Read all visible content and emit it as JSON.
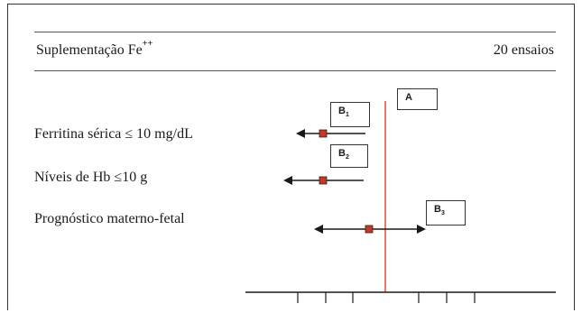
{
  "header": {
    "title": "Suplementação Fe",
    "title_superscript": "++",
    "count": "20 ensaios"
  },
  "rows": [
    {
      "label": "Ferritina sérica ≤ 10 mg/dL",
      "box_label": "B",
      "box_sub": "1"
    },
    {
      "label": "Níveis de Hb ≤10 g",
      "box_label": "B",
      "box_sub": "2"
    },
    {
      "label": "Prognóstico materno-fetal",
      "box_label": "B",
      "box_sub": "3"
    }
  ],
  "reference_box": {
    "label": "A"
  },
  "colors": {
    "reference_line": "#e0522f",
    "marker": "#c0392b",
    "line": "#1a1a1a"
  }
}
